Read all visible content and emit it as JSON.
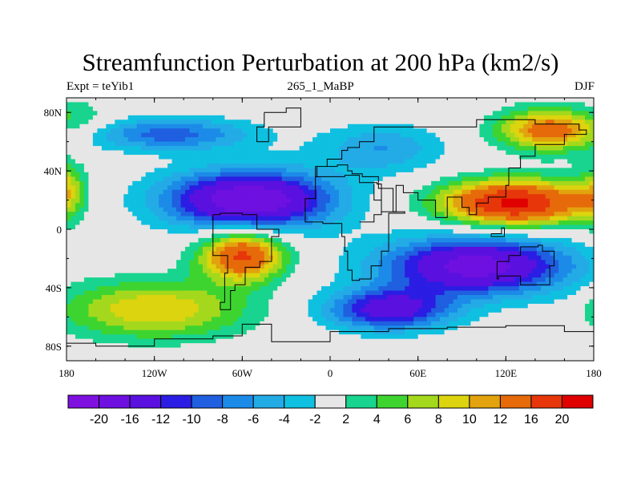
{
  "header": {
    "title": "Streamfunction Perturbation at 200 hPa (km2/s)",
    "left_label": "Expt = teYib1",
    "center_label": "265_1_MaBP",
    "right_label": "DJF"
  },
  "map": {
    "projection": "cylindrical-equidistant",
    "lon_range": [
      -180,
      180
    ],
    "lat_range": [
      -90,
      90
    ],
    "lon_ticks": [
      {
        "value": -180,
        "label": "180"
      },
      {
        "value": -120,
        "label": "120W"
      },
      {
        "value": -60,
        "label": "60W"
      },
      {
        "value": 0,
        "label": "0"
      },
      {
        "value": 60,
        "label": "60E"
      },
      {
        "value": 120,
        "label": "120E"
      },
      {
        "value": 180,
        "label": "180"
      }
    ],
    "lat_ticks": [
      {
        "value": 80,
        "label": "80N"
      },
      {
        "value": 40,
        "label": "40N"
      },
      {
        "value": 0,
        "label": "0"
      },
      {
        "value": -40,
        "label": "40S"
      },
      {
        "value": -80,
        "label": "80S"
      }
    ],
    "field_centers": [
      {
        "lon": -55,
        "lat": 20,
        "value": -20,
        "sx": 40,
        "sy": 14
      },
      {
        "lon": -110,
        "lat": 65,
        "value": -9,
        "sx": 40,
        "sy": 8
      },
      {
        "lon": 100,
        "lat": -25,
        "value": -18,
        "sx": 45,
        "sy": 14
      },
      {
        "lon": 40,
        "lat": -55,
        "value": -14,
        "sx": 30,
        "sy": 10
      },
      {
        "lon": 35,
        "lat": 55,
        "value": -6,
        "sx": 30,
        "sy": 12
      },
      {
        "lon": 125,
        "lat": 18,
        "value": 21,
        "sx": 35,
        "sy": 11
      },
      {
        "lon": 150,
        "lat": 68,
        "value": 14,
        "sx": 25,
        "sy": 10
      },
      {
        "lon": -60,
        "lat": -18,
        "value": 17,
        "sx": 20,
        "sy": 12
      },
      {
        "lon": -120,
        "lat": -55,
        "value": 10,
        "sx": 45,
        "sy": 14
      },
      {
        "lon": -185,
        "lat": 25,
        "value": 12,
        "sx": 12,
        "sy": 14
      },
      {
        "lon": 190,
        "lat": 22,
        "value": 9,
        "sx": 15,
        "sy": 14
      },
      {
        "lon": 190,
        "lat": -55,
        "value": 6,
        "sx": 12,
        "sy": 10
      },
      {
        "lon": -180,
        "lat": 75,
        "value": 5,
        "sx": 20,
        "sy": 10
      },
      {
        "lon": -20,
        "lat": -75,
        "value": 0,
        "sx": 20,
        "sy": 8
      }
    ],
    "continent_outlines": [
      [
        [
          -10,
          36
        ],
        [
          -5,
          36
        ],
        [
          10,
          37
        ],
        [
          20,
          32
        ],
        [
          32,
          31
        ],
        [
          35,
          28
        ],
        [
          43,
          12
        ],
        [
          51,
          11
        ],
        [
          40,
          -15
        ],
        [
          35,
          -25
        ],
        [
          28,
          -34
        ],
        [
          20,
          -35
        ],
        [
          15,
          -28
        ],
        [
          12,
          -15
        ],
        [
          10,
          -5
        ],
        [
          8,
          4
        ],
        [
          -5,
          5
        ],
        [
          -17,
          14
        ],
        [
          -17,
          21
        ],
        [
          -10,
          30
        ],
        [
          -10,
          36
        ]
      ],
      [
        [
          -80,
          10
        ],
        [
          -75,
          11
        ],
        [
          -60,
          10
        ],
        [
          -50,
          0
        ],
        [
          -35,
          -5
        ],
        [
          -40,
          -22
        ],
        [
          -48,
          -26
        ],
        [
          -58,
          -38
        ],
        [
          -65,
          -42
        ],
        [
          -68,
          -55
        ],
        [
          -75,
          -50
        ],
        [
          -72,
          -30
        ],
        [
          -70,
          -18
        ],
        [
          -80,
          -5
        ],
        [
          -80,
          10
        ]
      ],
      [
        [
          -10,
          36
        ],
        [
          -9,
          43
        ],
        [
          -2,
          48
        ],
        [
          8,
          54
        ],
        [
          12,
          56
        ],
        [
          20,
          60
        ],
        [
          30,
          70
        ],
        [
          60,
          70
        ],
        [
          100,
          75
        ],
        [
          140,
          72
        ],
        [
          170,
          68
        ],
        [
          175,
          65
        ],
        [
          160,
          58
        ],
        [
          140,
          50
        ],
        [
          130,
          42
        ],
        [
          122,
          30
        ],
        [
          120,
          22
        ],
        [
          108,
          18
        ],
        [
          100,
          10
        ],
        [
          95,
          15
        ],
        [
          90,
          22
        ],
        [
          80,
          8
        ],
        [
          72,
          20
        ],
        [
          60,
          25
        ],
        [
          57,
          25
        ],
        [
          50,
          30
        ],
        [
          45,
          12
        ],
        [
          43,
          12
        ],
        [
          35,
          28
        ],
        [
          33,
          36
        ],
        [
          27,
          36
        ],
        [
          22,
          38
        ],
        [
          15,
          40
        ],
        [
          12,
          44
        ],
        [
          5,
          43
        ],
        [
          -10,
          36
        ]
      ],
      [
        [
          114,
          -22
        ],
        [
          122,
          -18
        ],
        [
          130,
          -12
        ],
        [
          137,
          -12
        ],
        [
          142,
          -11
        ],
        [
          145,
          -15
        ],
        [
          153,
          -25
        ],
        [
          150,
          -38
        ],
        [
          140,
          -38
        ],
        [
          130,
          -32
        ],
        [
          115,
          -34
        ],
        [
          114,
          -22
        ]
      ],
      [
        [
          -180,
          -78
        ],
        [
          -160,
          -80
        ],
        [
          -120,
          -75
        ],
        [
          -80,
          -73
        ],
        [
          -60,
          -65
        ],
        [
          -40,
          -77
        ],
        [
          0,
          -70
        ],
        [
          40,
          -68
        ],
        [
          80,
          -67
        ],
        [
          120,
          -66
        ],
        [
          160,
          -70
        ],
        [
          180,
          -78
        ]
      ],
      [
        [
          20,
          5
        ],
        [
          30,
          10
        ],
        [
          35,
          20
        ],
        [
          30,
          31
        ]
      ],
      [
        [
          110,
          -3
        ],
        [
          117,
          1
        ],
        [
          119,
          -5
        ],
        [
          110,
          -3
        ]
      ],
      [
        [
          -45,
          80
        ],
        [
          -30,
          83
        ],
        [
          -20,
          78
        ],
        [
          -20,
          70
        ],
        [
          -42,
          60
        ],
        [
          -50,
          70
        ],
        [
          -45,
          80
        ]
      ]
    ]
  },
  "colorbar": {
    "colors": [
      "#7f11e0",
      "#6d10e0",
      "#5a10df",
      "#2b1de3",
      "#1f5fe0",
      "#1c8be8",
      "#23abe6",
      "#0fc0e0",
      "#e6e6e6",
      "#18d48e",
      "#3ed430",
      "#a4d81c",
      "#dcd40e",
      "#e2a30e",
      "#e66a0a",
      "#e6360a",
      "#e00000"
    ],
    "labels": [
      "-20",
      "-16",
      "-12",
      "-10",
      "-8",
      "-6",
      "-4",
      "-2",
      "2",
      "4",
      "6",
      "8",
      "10",
      "12",
      "16",
      "20"
    ],
    "levels": [
      -20,
      -16,
      -12,
      -10,
      -8,
      -6,
      -4,
      -2,
      2,
      4,
      6,
      8,
      10,
      12,
      16,
      20
    ]
  }
}
